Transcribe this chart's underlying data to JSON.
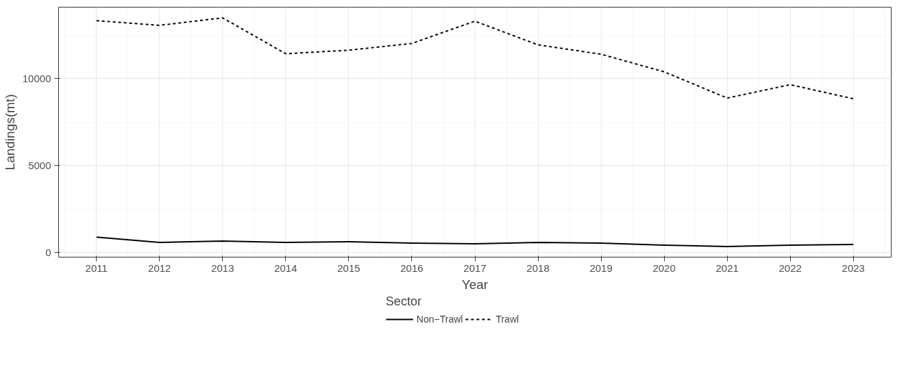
{
  "chart_data": {
    "type": "line",
    "xlabel": "Year",
    "ylabel": "Landings(mt)",
    "legend_title": "Sector",
    "legend": "bottom",
    "grid": true,
    "x": [
      2011,
      2012,
      2013,
      2014,
      2015,
      2016,
      2017,
      2018,
      2019,
      2020,
      2021,
      2022,
      2023
    ],
    "xlim": [
      2010.4,
      2023.6
    ],
    "xticks": [
      2011,
      2012,
      2013,
      2014,
      2015,
      2016,
      2017,
      2018,
      2019,
      2020,
      2021,
      2022,
      2023
    ],
    "ylim": [
      -263,
      14103
    ],
    "yticks": [
      0,
      5000,
      10000
    ],
    "series": [
      {
        "name": "Non−Trawl",
        "color": "#000000",
        "line_style": "solid",
        "values": [
          890,
          580,
          660,
          580,
          620,
          540,
          500,
          580,
          540,
          430,
          350,
          430,
          470
        ]
      },
      {
        "name": "Trawl",
        "color": "#000000",
        "line_style": "dashed",
        "values": [
          13330,
          13060,
          13490,
          11430,
          11630,
          12020,
          13300,
          11940,
          11400,
          10390,
          8880,
          9650,
          8840
        ]
      }
    ]
  }
}
